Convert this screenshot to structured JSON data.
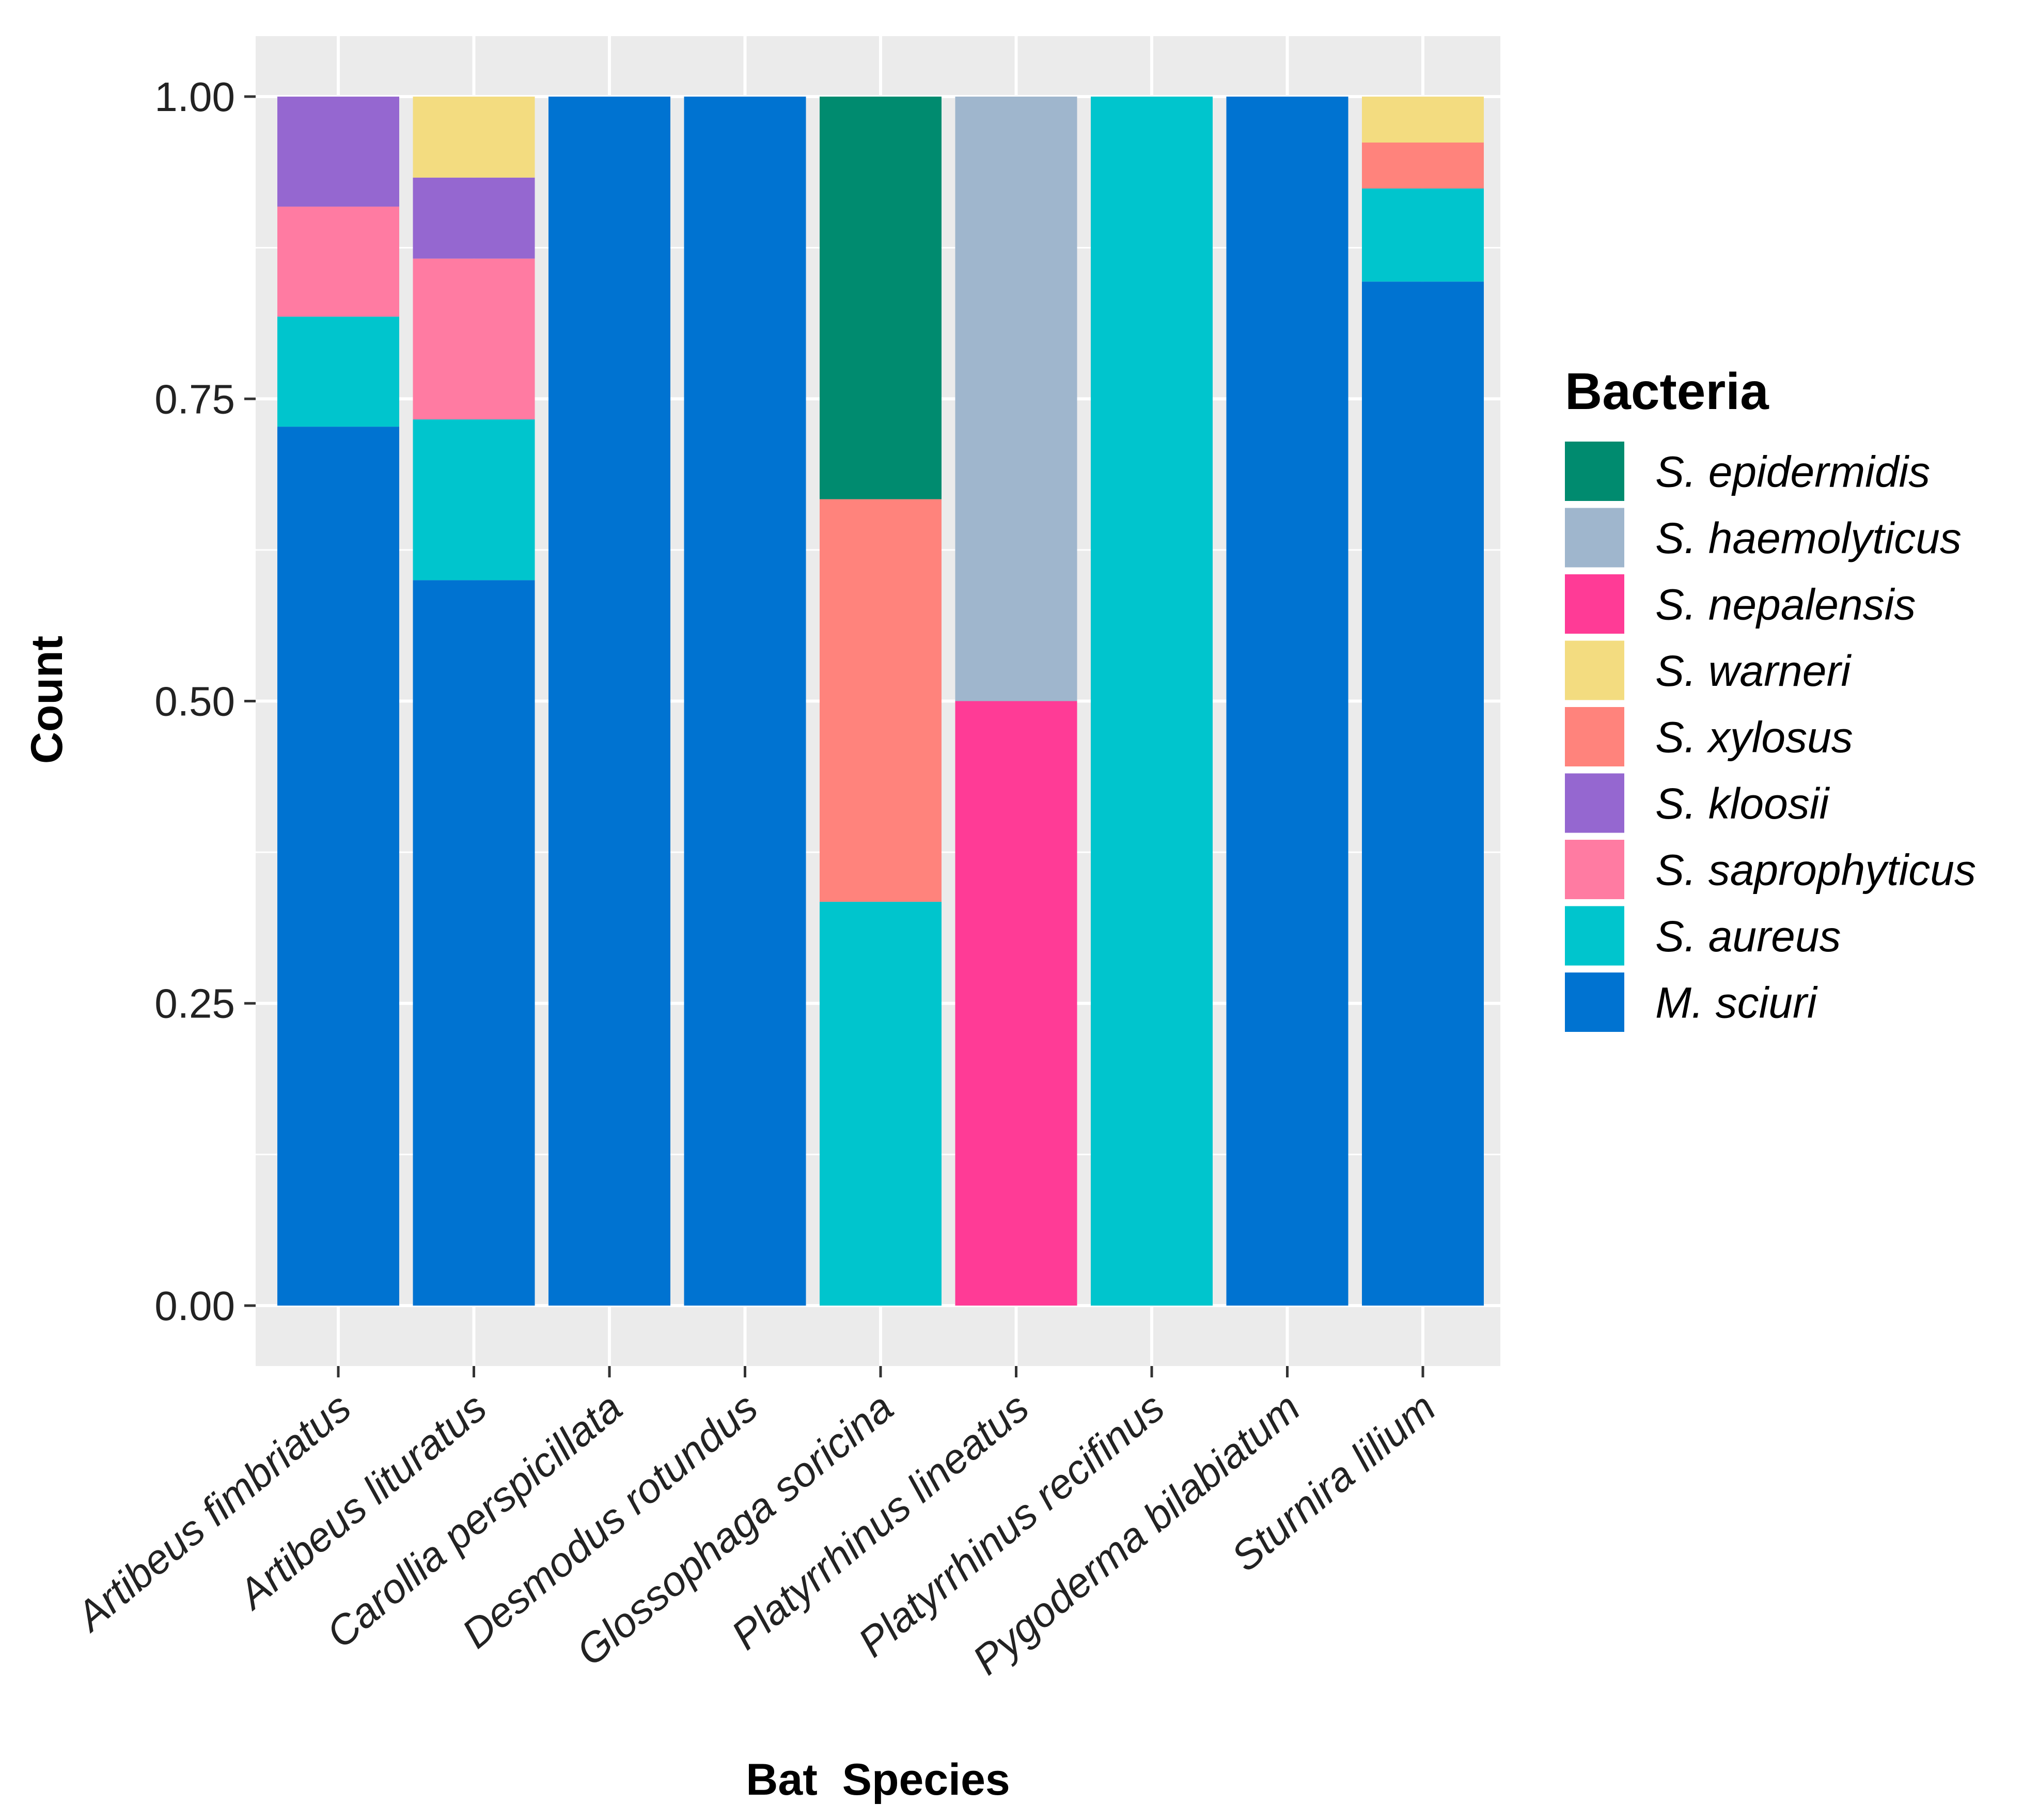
{
  "chart_data": {
    "type": "bar",
    "stacked": true,
    "title": "",
    "xlabel": "Bat  Species",
    "ylabel": "Count",
    "ylim": [
      -0.05,
      1.05
    ],
    "yticks": [
      0,
      0.25,
      0.5,
      0.75,
      1.0
    ],
    "ytick_labels": [
      "0.00",
      "0.25",
      "0.50",
      "0.75",
      "1.00"
    ],
    "categories": [
      "Artibeus fimbriatus",
      "Artibeus lituratus",
      "Carollia perspicillata",
      "Desmodus rotundus",
      "Glossophaga soricina",
      "Platyrrhinus lineatus",
      "Platyrrhinus recifinus",
      "Pygoderma bilabiatum",
      "Sturnira lilium"
    ],
    "legend_title": "Bacteria",
    "legend_position": "right",
    "series": [
      {
        "name": "S. epidermidis",
        "color": "#008B6F",
        "values": [
          0,
          0,
          0,
          0,
          0.333,
          0,
          0,
          0,
          0
        ]
      },
      {
        "name": "S. haemolyticus",
        "color": "#9FB6CD",
        "values": [
          0,
          0,
          0,
          0,
          0,
          0.5,
          0,
          0,
          0
        ]
      },
      {
        "name": "S. nepalensis",
        "color": "#FF3B96",
        "values": [
          0,
          0,
          0,
          0,
          0,
          0.5,
          0,
          0,
          0
        ]
      },
      {
        "name": "S. warneri",
        "color": "#F3DC80",
        "values": [
          0,
          0.067,
          0,
          0,
          0,
          0,
          0,
          0,
          0.038
        ]
      },
      {
        "name": "S. xylosus",
        "color": "#FF837C",
        "values": [
          0,
          0,
          0,
          0,
          0.333,
          0,
          0,
          0,
          0.038
        ]
      },
      {
        "name": "S. kloosii",
        "color": "#9567D0",
        "values": [
          0.091,
          0.067,
          0,
          0,
          0,
          0,
          0,
          0,
          0
        ]
      },
      {
        "name": "S. saprophyticus",
        "color": "#FF7BA2",
        "values": [
          0.091,
          0.133,
          0,
          0,
          0,
          0,
          0,
          0,
          0
        ]
      },
      {
        "name": "S. aureus",
        "color": "#00C5CD",
        "values": [
          0.091,
          0.133,
          0,
          0,
          0.334,
          0,
          1.0,
          0,
          0.077
        ]
      },
      {
        "name": "M. sciuri",
        "color": "#0073D1",
        "values": [
          0.727,
          0.6,
          1.0,
          1.0,
          0,
          0,
          0,
          1.0,
          0.847
        ]
      }
    ],
    "stack_order": [
      "M. sciuri",
      "S. aureus",
      "S. saprophyticus",
      "S. kloosii",
      "S. xylosus",
      "S. warneri",
      "S. nepalensis",
      "S. haemolyticus",
      "S. epidermidis"
    ]
  }
}
